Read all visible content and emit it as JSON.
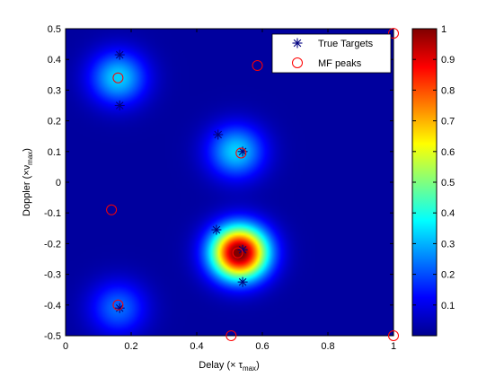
{
  "chart_data": {
    "type": "heatmap",
    "title": "",
    "xlabel": {
      "main": "Delay (× τ",
      "sub": "max",
      "close": ")"
    },
    "ylabel": {
      "main": "Doppler (×ν",
      "sub": "max",
      "close": ")"
    },
    "xlim": [
      0,
      1
    ],
    "ylim": [
      -0.5,
      0.5
    ],
    "xticks": [
      "0",
      "0.2",
      "0.4",
      "0.6",
      "0.8",
      "1"
    ],
    "yticks": [
      "-0.5",
      "-0.4",
      "-0.3",
      "-0.2",
      "-0.1",
      "0",
      "0.1",
      "0.2",
      "0.3",
      "0.4",
      "0.5"
    ],
    "colorbar": {
      "min": 0,
      "max": 1,
      "ticks": [
        "0.1",
        "0.2",
        "0.3",
        "0.4",
        "0.5",
        "0.6",
        "0.7",
        "0.8",
        "0.9",
        "1"
      ],
      "colormap": "jet"
    },
    "legend": {
      "position": "top-right",
      "entries": [
        {
          "label": "True Targets",
          "marker": "asterisk",
          "color": "#000080"
        },
        {
          "label": "MF peaks",
          "marker": "circle",
          "color": "#ff0000"
        }
      ]
    },
    "heatmap_blobs": [
      {
        "x": 0.16,
        "y": 0.34,
        "amplitude": 0.3
      },
      {
        "x": 0.52,
        "y": 0.1,
        "amplitude": 0.3
      },
      {
        "x": 0.53,
        "y": -0.23,
        "amplitude": 1.0
      },
      {
        "x": 0.16,
        "y": -0.41,
        "amplitude": 0.2
      }
    ],
    "series": [
      {
        "name": "True Targets",
        "points": [
          {
            "x": 0.165,
            "y": 0.415
          },
          {
            "x": 0.165,
            "y": 0.25
          },
          {
            "x": 0.465,
            "y": 0.155
          },
          {
            "x": 0.54,
            "y": 0.1
          },
          {
            "x": 0.46,
            "y": -0.155
          },
          {
            "x": 0.54,
            "y": -0.22
          },
          {
            "x": 0.54,
            "y": -0.325
          },
          {
            "x": 0.165,
            "y": -0.41
          }
        ]
      },
      {
        "name": "MF peaks",
        "points": [
          {
            "x": 0.16,
            "y": 0.34
          },
          {
            "x": 0.585,
            "y": 0.38
          },
          {
            "x": 1.0,
            "y": 0.485
          },
          {
            "x": 0.535,
            "y": 0.095
          },
          {
            "x": 0.14,
            "y": -0.09
          },
          {
            "x": 0.525,
            "y": -0.23
          },
          {
            "x": 0.16,
            "y": -0.4
          },
          {
            "x": 0.505,
            "y": -0.5
          },
          {
            "x": 1.0,
            "y": -0.5
          }
        ]
      }
    ]
  }
}
